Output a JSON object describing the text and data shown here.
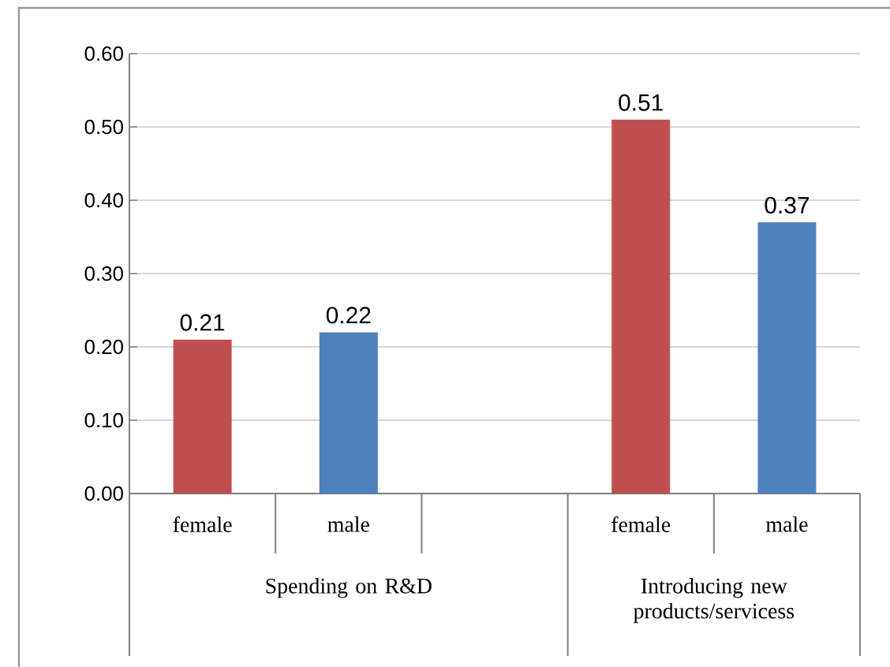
{
  "chart_data": {
    "type": "bar",
    "categories": [
      "female",
      "male",
      null,
      "female",
      "male"
    ],
    "values": [
      0.21,
      0.22,
      null,
      0.51,
      0.37
    ],
    "colors": [
      "#c0504d",
      "#4f81bd",
      null,
      "#c0504d",
      "#4f81bd"
    ],
    "ylim": [
      0,
      0.6
    ],
    "yticks": [
      {
        "value": 0,
        "label": "0.00"
      },
      {
        "value": 0.1,
        "label": "0.10"
      },
      {
        "value": 0.2,
        "label": "0.20"
      },
      {
        "value": 0.3,
        "label": "0.30"
      },
      {
        "value": 0.4,
        "label": "0.40"
      },
      {
        "value": 0.5,
        "label": "0.50"
      },
      {
        "value": 0.6,
        "label": "0.60"
      }
    ],
    "grid": "y",
    "data_labels": true,
    "annotations": [
      "Spending on R&D",
      "Introducing new products/servicess"
    ]
  }
}
